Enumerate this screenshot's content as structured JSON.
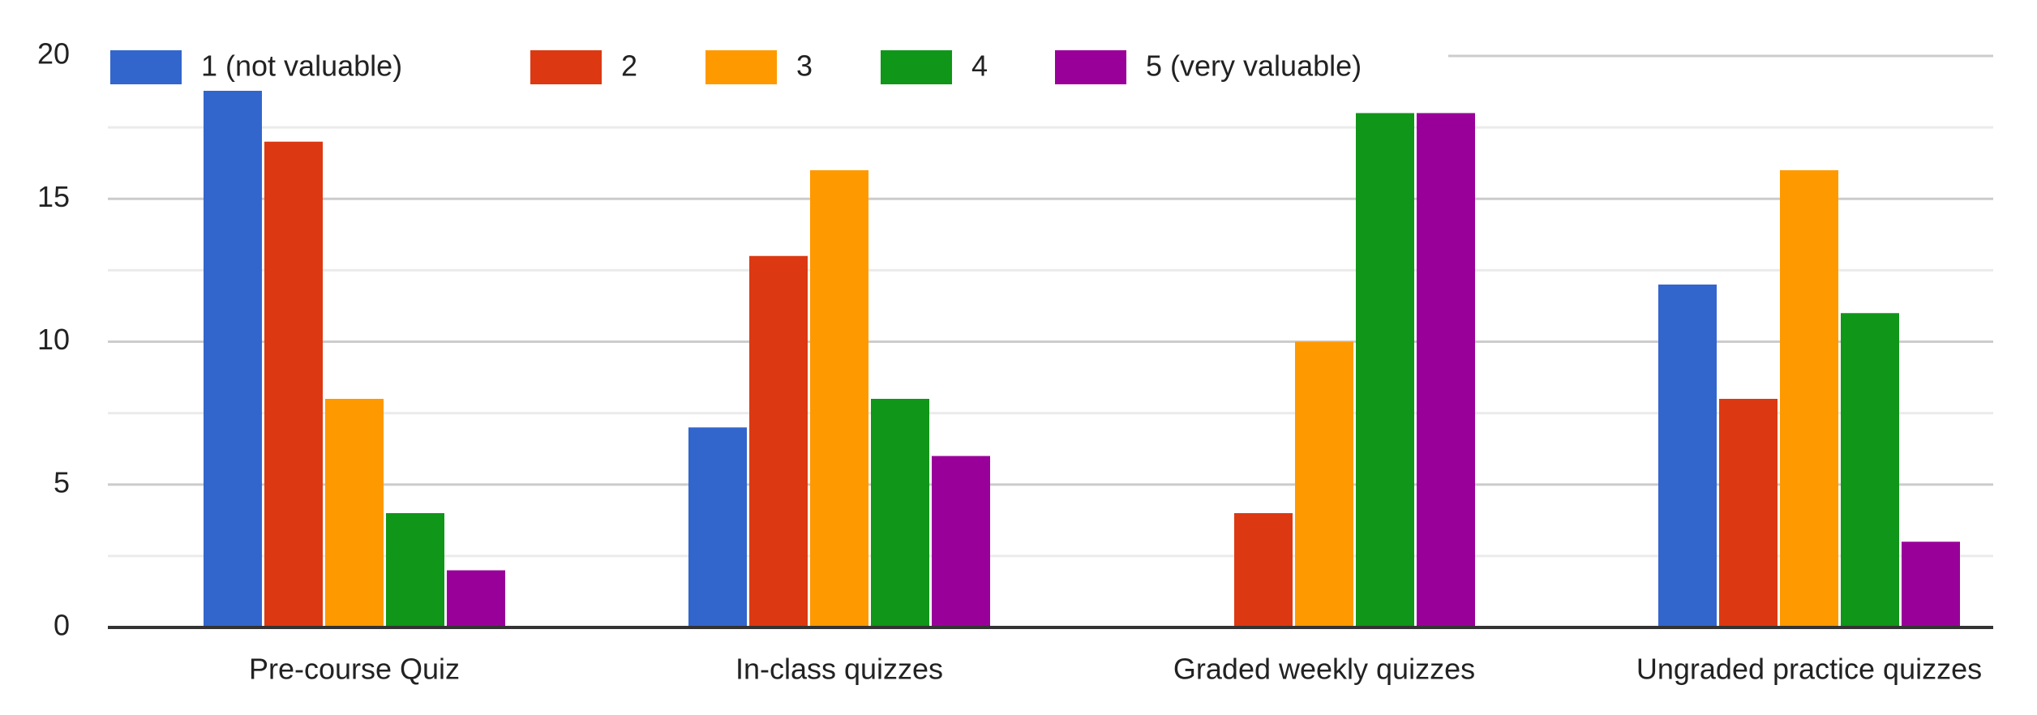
{
  "chart_data": {
    "type": "bar",
    "categories": [
      "Pre-course Quiz",
      "In-class quizzes",
      "Graded weekly quizzes",
      "Ungraded practice quizzes"
    ],
    "series": [
      {
        "name": "1 (not valuable)",
        "color": "#3366cc",
        "values": [
          19,
          7,
          0,
          12
        ]
      },
      {
        "name": "2",
        "color": "#dc3912",
        "values": [
          17,
          13,
          4,
          8
        ]
      },
      {
        "name": "3",
        "color": "#ff9900",
        "values": [
          8,
          16,
          10,
          16
        ]
      },
      {
        "name": "4",
        "color": "#109618",
        "values": [
          4,
          8,
          18,
          11
        ]
      },
      {
        "name": "5 (very valuable)",
        "color": "#990099",
        "values": [
          2,
          6,
          18,
          3
        ]
      }
    ],
    "ylim": [
      0,
      20
    ],
    "yticks": [
      0,
      5,
      10,
      15,
      20
    ],
    "grid": true,
    "minor_grid": true,
    "legend": "top"
  }
}
